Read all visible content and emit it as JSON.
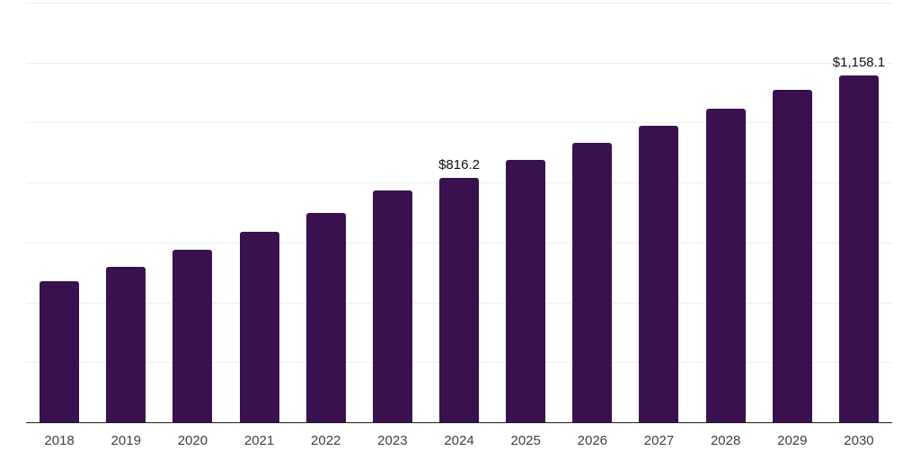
{
  "chart_data": {
    "type": "bar",
    "categories": [
      "2018",
      "2019",
      "2020",
      "2021",
      "2022",
      "2023",
      "2024",
      "2025",
      "2026",
      "2027",
      "2028",
      "2029",
      "2030"
    ],
    "values": [
      470,
      519,
      576,
      636,
      700,
      775,
      816.2,
      876,
      933,
      988,
      1045,
      1108,
      1158.1
    ],
    "value_labels": {
      "2024": "$816.2",
      "2030": "$1,158.1"
    },
    "ylim": [
      0,
      1400
    ],
    "gridline_interval": 200,
    "grid": "horizontal",
    "y_tick_labels_visible": false,
    "legend_position": "none",
    "colors": {
      "bar": "#3A114F",
      "gridline": "#EFEFEF",
      "axis_line": "#1F1F1F",
      "tick_label": "#404040",
      "value_label": "#111111",
      "background": "#FFFFFF"
    }
  }
}
